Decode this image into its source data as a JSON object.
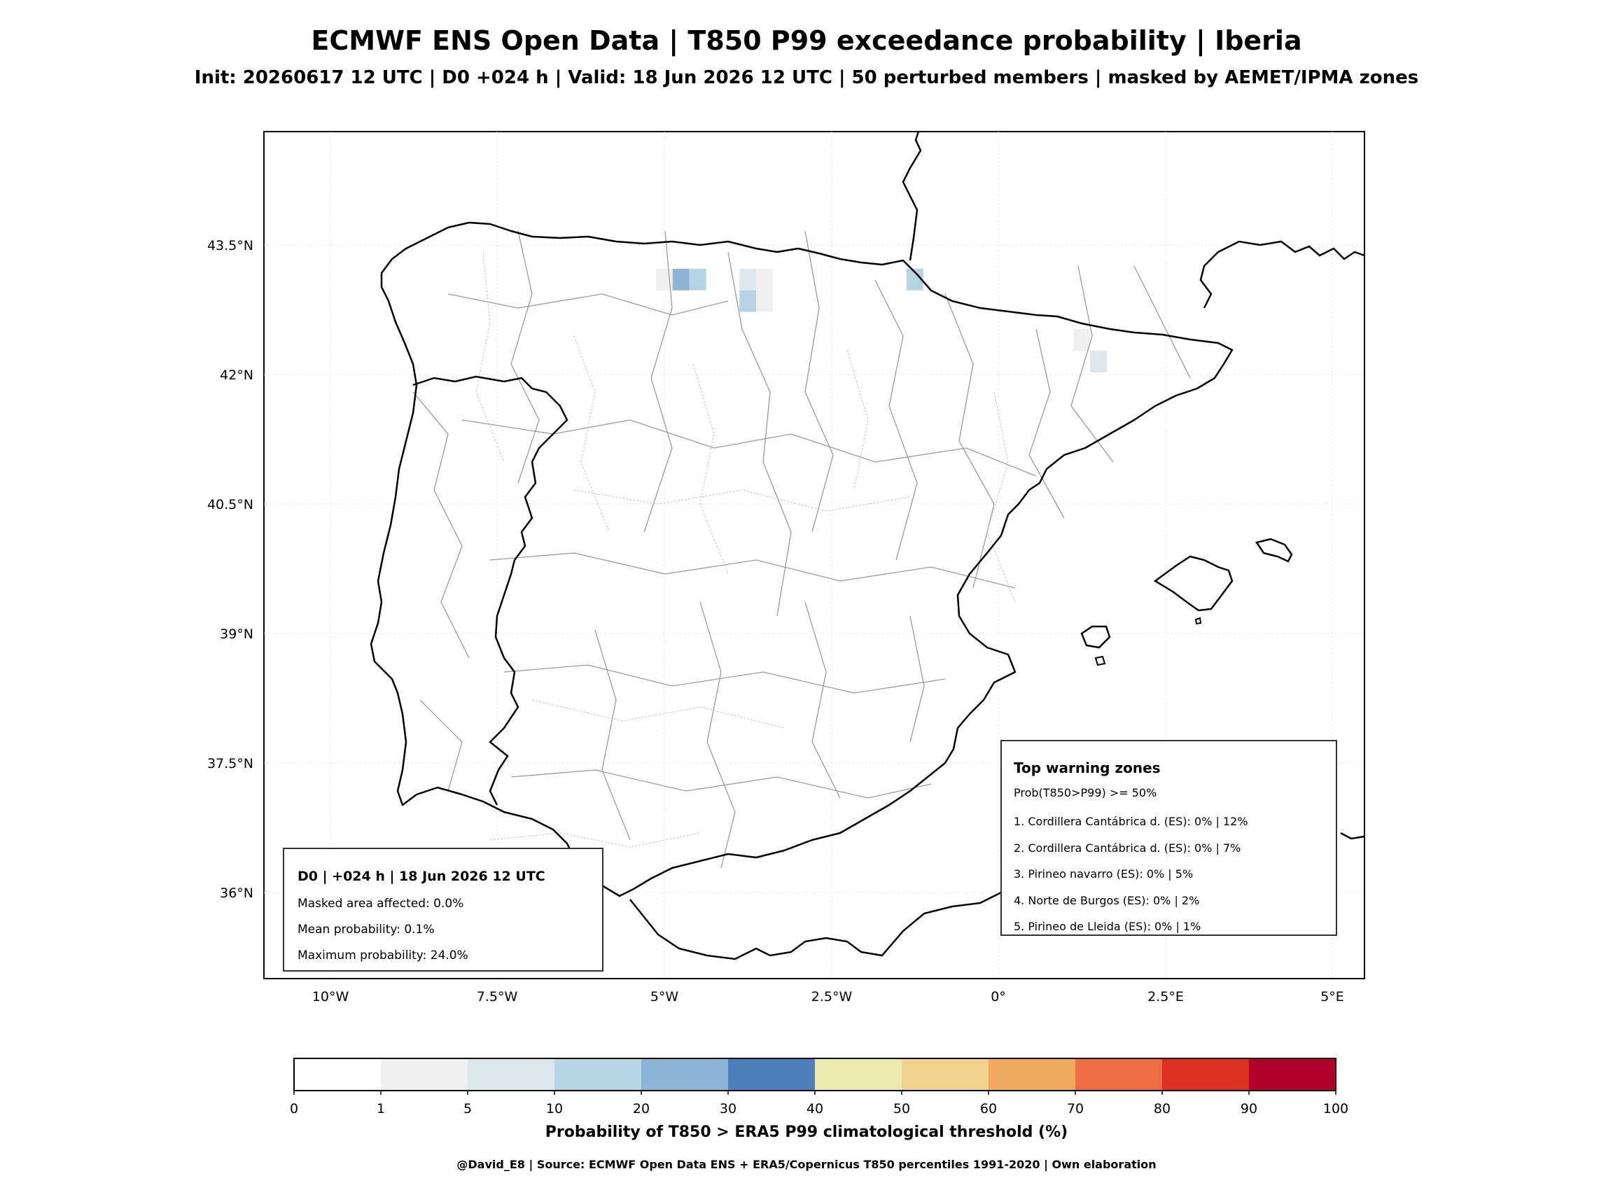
{
  "header": {
    "title": "ECMWF ENS Open Data | T850 P99 exceedance probability | Iberia",
    "subtitle": "Init: 20260617 12 UTC | D0 +024 h | Valid: 18 Jun 2026 12 UTC | 50 perturbed members | masked by AEMET/IPMA zones"
  },
  "axes": {
    "lat_labels": [
      "43.5°N",
      "42°N",
      "40.5°N",
      "39°N",
      "37.5°N",
      "36°N"
    ],
    "lon_labels": [
      "10°W",
      "7.5°W",
      "5°W",
      "2.5°W",
      "0°",
      "2.5°E",
      "5°E"
    ]
  },
  "summary_box": {
    "title": "D0 | +024 h | 18 Jun 2026 12 UTC",
    "lines": [
      "Masked area affected: 0.0%",
      "Mean probability: 0.1%",
      "Maximum probability: 24.0%"
    ]
  },
  "warning_box": {
    "title": "Top warning zones",
    "subtitle": "Prob(T850>P99) >= 50%",
    "items": [
      "1. Cordillera Cantábrica d. (ES): 0% | 12%",
      "2. Cordillera Cantábrica d. (ES): 0% | 7%",
      "3. Pirineo navarro (ES): 0% | 5%",
      "4. Norte de Burgos (ES): 0% | 2%",
      "5. Pirineo de Lleida (ES): 0% | 1%"
    ]
  },
  "colorbar": {
    "label": "Probability of T850 > ERA5 P99 climatological threshold (%)",
    "bounds": [
      0,
      1,
      5,
      10,
      20,
      30,
      40,
      50,
      60,
      70,
      80,
      90,
      100
    ],
    "tick_labels": [
      "0",
      "1",
      "5",
      "10",
      "20",
      "30",
      "40",
      "50",
      "60",
      "70",
      "80",
      "90",
      "100"
    ],
    "colors": [
      "#ffffff",
      "#f0f0f0",
      "#dce7ee",
      "#b7d4e4",
      "#8cb5d5",
      "#4f7fbb",
      "#ece9b0",
      "#f0d28a",
      "#f0aa60",
      "#ee6e43",
      "#dd3122",
      "#b3002a"
    ]
  },
  "probability_cells": [
    {
      "lon": -5.0,
      "lat": 43.1,
      "p": 2
    },
    {
      "lon": -4.75,
      "lat": 43.1,
      "p": 24
    },
    {
      "lon": -4.5,
      "lat": 43.1,
      "p": 12
    },
    {
      "lon": -3.75,
      "lat": 43.1,
      "p": 7
    },
    {
      "lon": -3.5,
      "lat": 43.1,
      "p": 2
    },
    {
      "lon": -3.75,
      "lat": 42.85,
      "p": 12
    },
    {
      "lon": -3.5,
      "lat": 42.85,
      "p": 2
    },
    {
      "lon": -1.25,
      "lat": 43.1,
      "p": 12
    },
    {
      "lon": 1.25,
      "lat": 42.4,
      "p": 2
    },
    {
      "lon": 1.5,
      "lat": 42.15,
      "p": 5
    }
  ],
  "credit": "@David_E8 | Source: ECMWF Open Data ENS + ERA5/Copernicus T850 percentiles 1991-2020 | Own elaboration"
}
